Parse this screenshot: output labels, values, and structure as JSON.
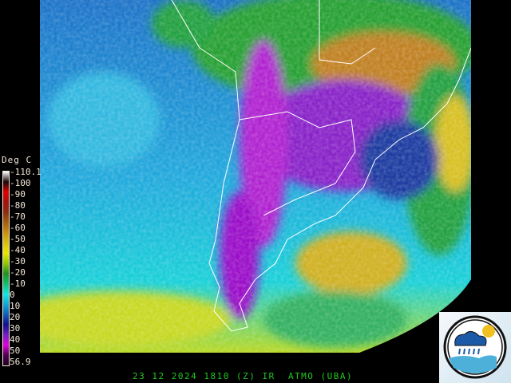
{
  "legend": {
    "title": "Deg C",
    "labels": [
      "-110.1",
      "-100",
      "-90",
      "-80",
      "-70",
      "-60",
      "-50",
      "-40",
      "-30",
      "-20",
      "-10",
      "0",
      "10",
      "20",
      "30",
      "40",
      "50",
      "56.9"
    ],
    "colors": [
      "#ffffff",
      "#1a0a0a",
      "#e00000",
      "#a81010",
      "#8a2e0e",
      "#a8600e",
      "#c8900e",
      "#d8c00e",
      "#e8e800",
      "#90c800",
      "#209020",
      "#10c070",
      "#10e8e0",
      "#10a8d8",
      "#1060b8",
      "#10108c",
      "#7020c0",
      "#e000e0",
      "#500050",
      "#200020"
    ]
  },
  "footer": {
    "caption": "23 12 2024 1810 (Z) IR  ATMO (UBA)"
  },
  "logo": {
    "name": "atmo-uba-logo"
  },
  "colors": {
    "ocean_cold": "#1a8fd0",
    "ocean_warm": "#10c8d8",
    "cloud_cold": "#9a10d0",
    "land_outline": "#ffffff"
  }
}
